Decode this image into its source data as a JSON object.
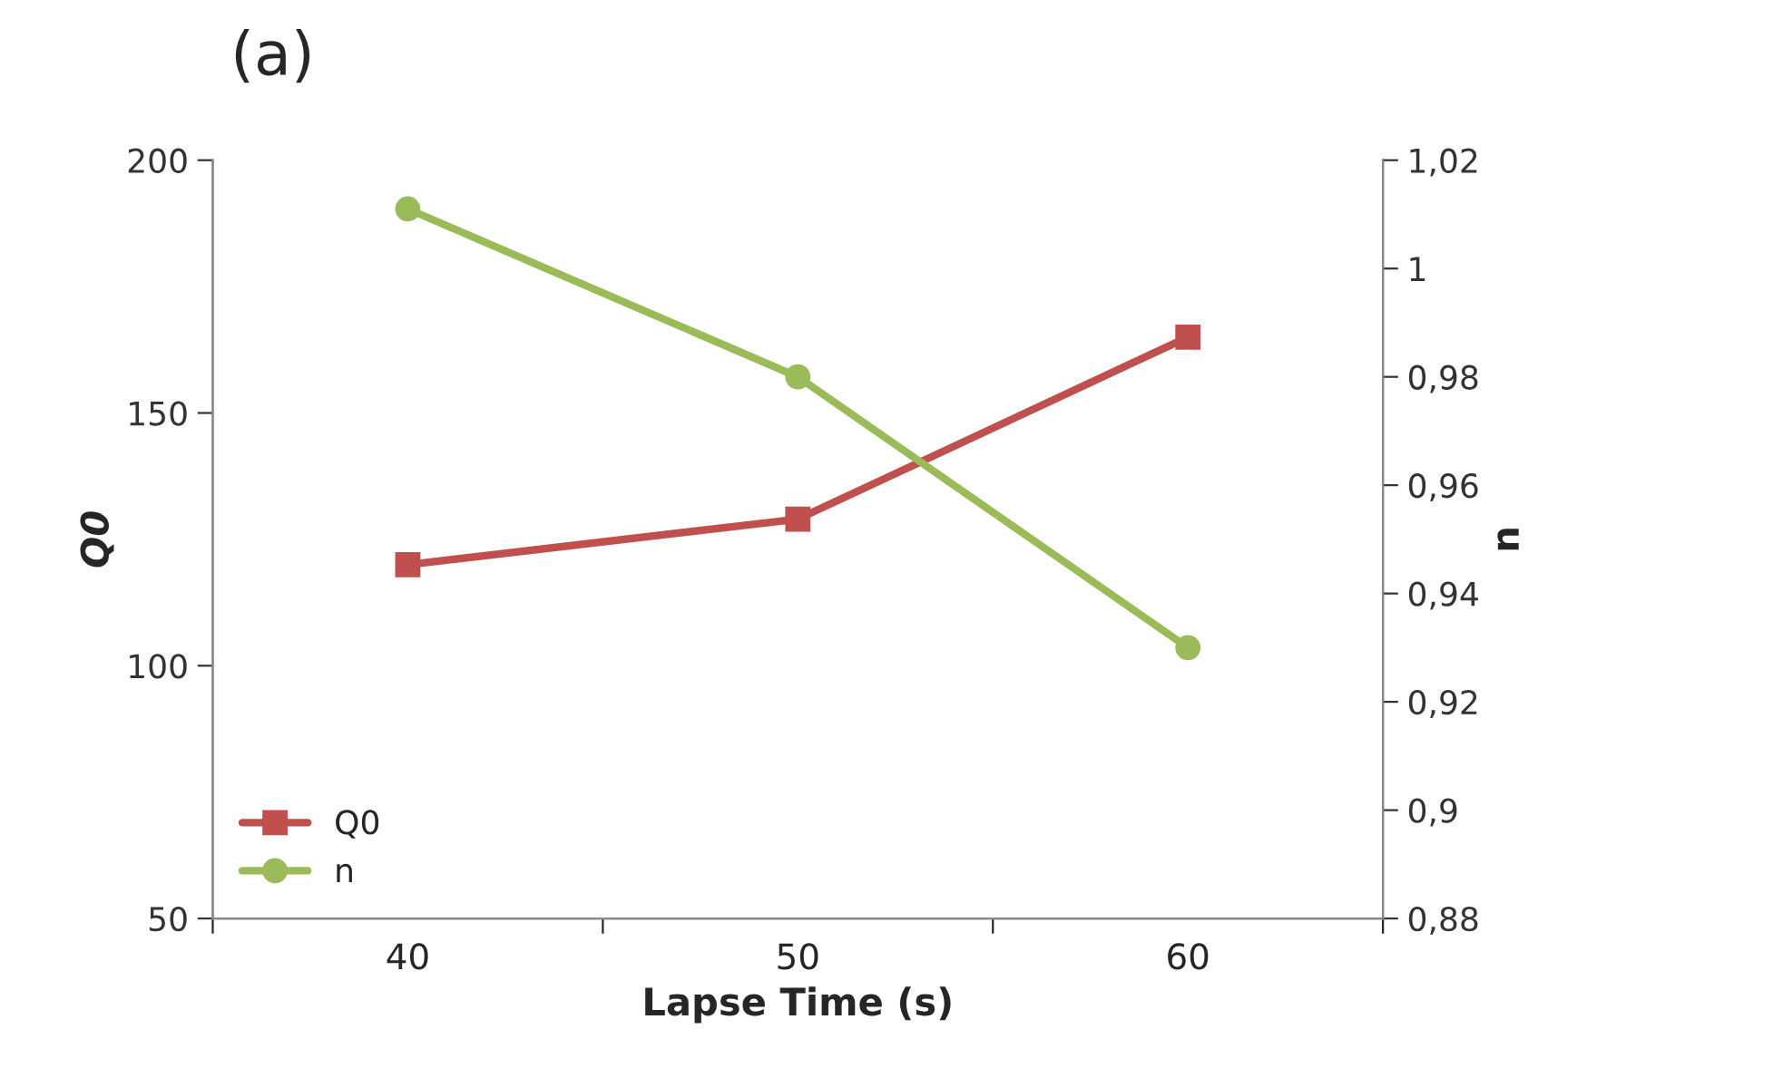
{
  "chart_data": {
    "type": "line",
    "title": "(a)",
    "xlabel": "Lapse Time (s)",
    "ylabel": "Q0",
    "y2label": "n",
    "x": [
      40,
      50,
      60
    ],
    "xlim": [
      35,
      65
    ],
    "xticks": [
      {
        "value": 35,
        "label": null
      },
      40,
      {
        "value": 45,
        "label": null
      },
      50,
      {
        "value": 55,
        "label": null
      },
      60,
      {
        "value": 65,
        "label": null
      }
    ],
    "series": [
      {
        "name": "Q0",
        "color": "#c0504d",
        "marker": "square",
        "values": [
          120,
          129,
          165
        ]
      },
      {
        "name": "n",
        "color": "#9bbb59",
        "marker": "circle",
        "axis": "y2",
        "values": [
          1.011,
          0.98,
          0.93
        ]
      }
    ],
    "ylim": [
      50,
      200
    ],
    "yticks": [
      50,
      100,
      150,
      200
    ],
    "y2lim": [
      0.88,
      1.02
    ],
    "y2ticks": [
      {
        "value": 0.88,
        "label": "0,88"
      },
      {
        "value": 0.9,
        "label": "0,9"
      },
      {
        "value": 0.92,
        "label": "0,92"
      },
      {
        "value": 0.94,
        "label": "0,94"
      },
      {
        "value": 0.96,
        "label": "0,96"
      },
      {
        "value": 0.98,
        "label": "0,98"
      },
      {
        "value": 1,
        "label": "1"
      },
      {
        "value": 1.02,
        "label": "1,02"
      }
    ],
    "grid": false,
    "legend": "bottom left",
    "line_style": "solid"
  }
}
